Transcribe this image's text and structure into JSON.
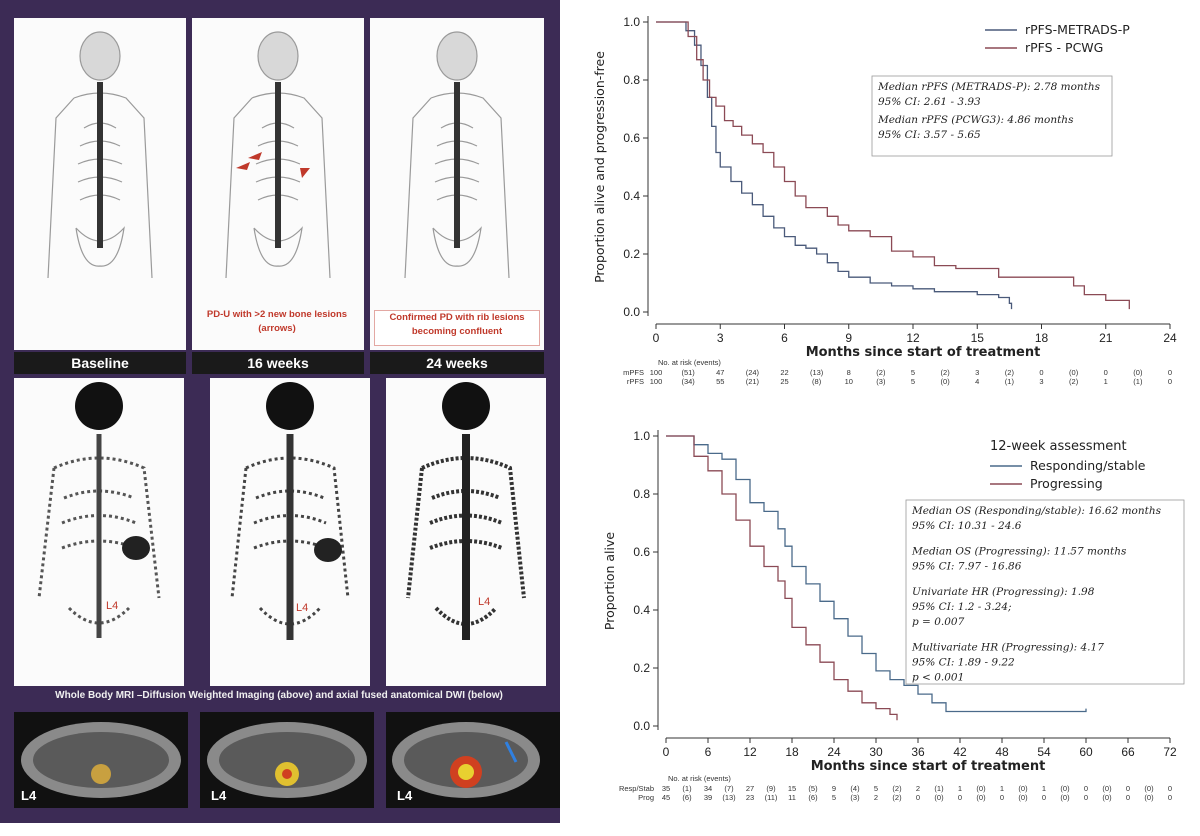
{
  "left": {
    "week_labels": [
      "Baseline",
      "16 weeks",
      "24 weeks"
    ],
    "caption_16": "PD-U with >2 new bone lesions (arrows)",
    "caption_24": "Confirmed PD with rib lesions becoming confluent",
    "mri_caption": "Whole Body MRI –Diffusion Weighted Imaging (above) and axial fused anatomical DWI (below)",
    "l4_label": "L4",
    "lesion_color": "#c0392b",
    "frame_color": "#3c2b55"
  },
  "charts": [
    {
      "chart_data": {
        "type": "line",
        "ylabel": "Proportion alive and progression-free",
        "xlabel": "Months since start of treatment",
        "xlim": [
          0,
          24
        ],
        "ylim": [
          0,
          1
        ],
        "xticks": [
          0,
          3,
          6,
          9,
          12,
          15,
          18,
          21,
          24
        ],
        "yticks": [
          "0.0",
          "0.2",
          "0.4",
          "0.6",
          "0.8",
          "1.0"
        ],
        "grid": false,
        "legend": "top-right",
        "series": [
          {
            "name": "rPFS-METRADS-P",
            "color": "#4a5a7a",
            "x": [
              0,
              1.0,
              1.4,
              1.8,
              2.1,
              2.4,
              2.6,
              2.8,
              3.0,
              3.5,
              4.0,
              4.5,
              5.0,
              5.5,
              6.0,
              6.5,
              7.0,
              7.5,
              8.0,
              8.5,
              9.0,
              10.0,
              11.0,
              12.0,
              13.0,
              14.0,
              15.0,
              16.0,
              16.5,
              16.6
            ],
            "y": [
              1.0,
              1.0,
              0.97,
              0.92,
              0.85,
              0.74,
              0.64,
              0.55,
              0.5,
              0.45,
              0.41,
              0.37,
              0.33,
              0.29,
              0.26,
              0.23,
              0.22,
              0.2,
              0.17,
              0.14,
              0.12,
              0.1,
              0.09,
              0.08,
              0.07,
              0.07,
              0.06,
              0.05,
              0.03,
              0.01
            ]
          },
          {
            "name": "rPFS - PCWG",
            "color": "#8b4a55",
            "x": [
              0,
              1.0,
              1.5,
              1.9,
              2.2,
              2.5,
              2.8,
              3.2,
              3.6,
              4.0,
              4.5,
              5.0,
              5.5,
              6.0,
              6.5,
              7.0,
              7.5,
              8.0,
              8.5,
              9.0,
              10.0,
              11.0,
              12.0,
              13.0,
              14.0,
              15.0,
              16.0,
              17.0,
              18.0,
              19.5,
              20.0,
              21.0,
              22.0,
              22.1
            ],
            "y": [
              1.0,
              1.0,
              0.95,
              0.87,
              0.8,
              0.74,
              0.71,
              0.66,
              0.64,
              0.61,
              0.58,
              0.55,
              0.5,
              0.45,
              0.4,
              0.36,
              0.36,
              0.33,
              0.3,
              0.28,
              0.26,
              0.21,
              0.19,
              0.16,
              0.15,
              0.15,
              0.12,
              0.12,
              0.12,
              0.09,
              0.06,
              0.04,
              0.04,
              0.01
            ]
          }
        ],
        "annotation": [
          "Median rPFS (METRADS-P): 2.78 months",
          "95% CI: 2.61 - 3.93",
          "Median rPFS (PCWG3): 4.86 months",
          "95% CI: 3.57 - 5.65"
        ],
        "risk_table": {
          "title": "No. at risk (events)",
          "rows": [
            {
              "label": "mPFS",
              "values": [
                "100",
                "(51)",
                "47",
                "(24)",
                "22",
                "(13)",
                "8",
                "(2)",
                "5",
                "(2)",
                "3",
                "(2)",
                "0",
                "(0)",
                "0",
                "(0)",
                "0"
              ]
            },
            {
              "label": "rPFS",
              "values": [
                "100",
                "(34)",
                "55",
                "(21)",
                "25",
                "(8)",
                "10",
                "(3)",
                "5",
                "(0)",
                "4",
                "(1)",
                "3",
                "(2)",
                "1",
                "(1)",
                "0"
              ]
            }
          ]
        }
      }
    },
    {
      "chart_data": {
        "type": "line",
        "ylabel": "Proportion alive",
        "xlabel": "Months since start of treatment",
        "xlim": [
          0,
          72
        ],
        "ylim": [
          0,
          1
        ],
        "xticks": [
          0,
          6,
          12,
          18,
          24,
          30,
          36,
          42,
          48,
          54,
          60,
          66,
          72
        ],
        "yticks": [
          "0.0",
          "0.2",
          "0.4",
          "0.6",
          "0.8",
          "1.0"
        ],
        "grid": false,
        "legend": "top-right",
        "legend_title": "12-week assessment",
        "series": [
          {
            "name": "Responding/stable",
            "color": "#4a6a8a",
            "x": [
              0,
              3,
              4,
              6,
              8,
              10,
              12,
              14,
              16,
              17,
              18,
              20,
              22,
              24,
              26,
              28,
              30,
              32,
              34,
              36,
              38,
              40,
              45,
              50,
              55,
              60
            ],
            "y": [
              1.0,
              1.0,
              0.97,
              0.94,
              0.92,
              0.85,
              0.77,
              0.74,
              0.68,
              0.62,
              0.55,
              0.49,
              0.43,
              0.37,
              0.31,
              0.25,
              0.19,
              0.16,
              0.14,
              0.11,
              0.08,
              0.05,
              0.05,
              0.05,
              0.05,
              0.06
            ]
          },
          {
            "name": "Progressing",
            "color": "#8b4a55",
            "x": [
              0,
              3,
              4,
              6,
              8,
              10,
              12,
              14,
              16,
              17,
              18,
              20,
              22,
              24,
              26,
              28,
              30,
              32,
              33
            ],
            "y": [
              1.0,
              1.0,
              0.93,
              0.88,
              0.8,
              0.71,
              0.62,
              0.55,
              0.5,
              0.44,
              0.34,
              0.28,
              0.22,
              0.16,
              0.12,
              0.08,
              0.06,
              0.04,
              0.02
            ]
          }
        ],
        "annotation": [
          "Median OS (Responding/stable): 16.62 months",
          "95% CI: 10.31 - 24.6",
          "Median OS (Progressing): 11.57 months",
          "95% CI: 7.97 - 16.86",
          "Univariate HR (Progressing): 1.98",
          "95% CI: 1.2 - 3.24;",
          "p = 0.007",
          "Multivariate HR (Progressing): 4.17",
          "95% CI: 1.89 - 9.22",
          "p < 0.001"
        ],
        "risk_table": {
          "title": "No. at risk (events)",
          "rows": [
            {
              "label": "Resp/Stab",
              "values": [
                "35",
                "(1)",
                "34",
                "(7)",
                "27",
                "(9)",
                "15",
                "(5)",
                "9",
                "(4)",
                "5",
                "(2)",
                "2",
                "(1)",
                "1",
                "(0)",
                "1",
                "(0)",
                "1",
                "(0)",
                "0",
                "(0)",
                "0",
                "(0)",
                "0"
              ]
            },
            {
              "label": "Prog",
              "values": [
                "45",
                "(6)",
                "39",
                "(13)",
                "23",
                "(11)",
                "11",
                "(6)",
                "5",
                "(3)",
                "2",
                "(2)",
                "0",
                "(0)",
                "0",
                "(0)",
                "0",
                "(0)",
                "0",
                "(0)",
                "0",
                "(0)",
                "0",
                "(0)",
                "0"
              ]
            }
          ]
        }
      }
    }
  ]
}
